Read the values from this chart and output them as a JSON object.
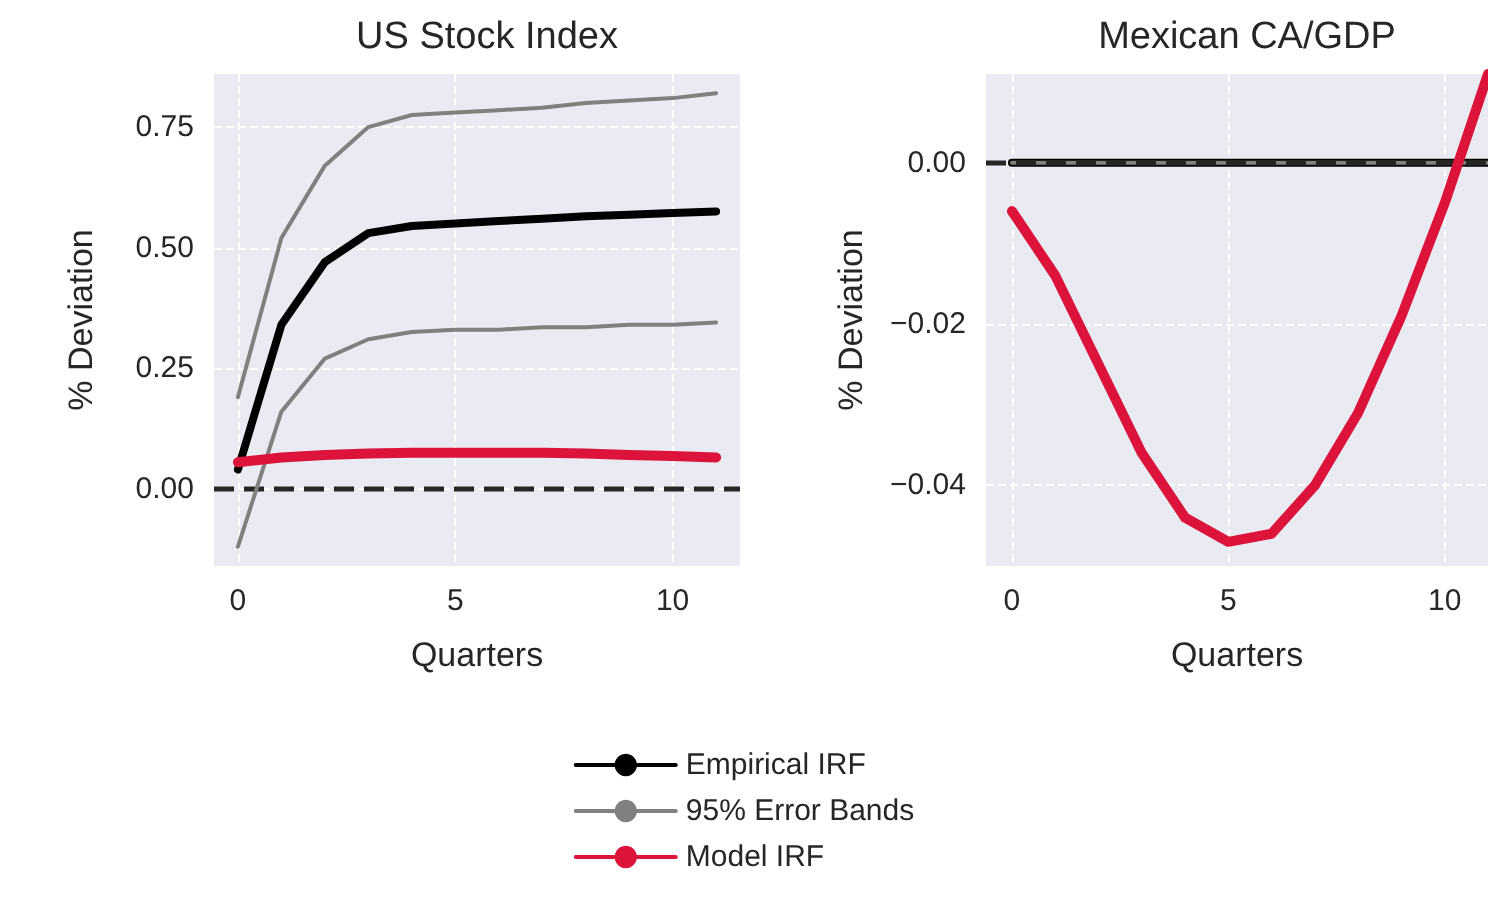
{
  "chart_data": [
    {
      "type": "line",
      "title": "US Stock Index",
      "xlabel": "Quarters",
      "ylabel": "% Deviation",
      "x": [
        0,
        1,
        2,
        3,
        4,
        5,
        6,
        7,
        8,
        9,
        10,
        11
      ],
      "xlim": [
        -0.55,
        11.55
      ],
      "xticks": [
        0,
        5,
        10
      ],
      "ylim": [
        -0.16,
        0.86
      ],
      "yticks": [
        {
          "value": 0,
          "label": "0.00"
        },
        {
          "value": 0.25,
          "label": "0.25"
        },
        {
          "value": 0.5,
          "label": "0.50"
        },
        {
          "value": 0.75,
          "label": "0.75"
        }
      ],
      "grid": true,
      "legend": "bottom",
      "marker": "none",
      "ref_lines": [
        {
          "axis": "y",
          "value": 0,
          "color": "#262626",
          "line_style": "dashed"
        }
      ],
      "series": [
        {
          "name": "Empirical IRF",
          "color": "#000000",
          "values": [
            0.04,
            0.34,
            0.47,
            0.53,
            0.545,
            0.55,
            0.555,
            0.56,
            0.565,
            0.568,
            0.572,
            0.575
          ]
        },
        {
          "name": "95% Error Bands",
          "color": "#808080",
          "values": [
            0.19,
            0.52,
            0.67,
            0.75,
            0.775,
            0.78,
            0.785,
            0.79,
            0.8,
            0.805,
            0.81,
            0.82
          ]
        },
        {
          "color": "#808080",
          "values": [
            -0.12,
            0.16,
            0.27,
            0.31,
            0.325,
            0.33,
            0.33,
            0.335,
            0.335,
            0.34,
            0.34,
            0.345
          ]
        },
        {
          "name": "Model IRF",
          "color": "#dc143c",
          "values": [
            0.055,
            0.065,
            0.07,
            0.073,
            0.075,
            0.075,
            0.075,
            0.075,
            0.073,
            0.07,
            0.068,
            0.065
          ]
        }
      ]
    },
    {
      "type": "line",
      "title": "Mexican CA/GDP",
      "xlabel": "Quarters",
      "ylabel": "% Deviation",
      "x": [
        0,
        1,
        2,
        3,
        4,
        5,
        6,
        7,
        8,
        9,
        10,
        11
      ],
      "xlim": [
        -0.6,
        11
      ],
      "xticks": [
        0,
        5,
        10
      ],
      "ylim": [
        -0.05,
        0.011
      ],
      "yticks": [
        {
          "value": 0,
          "label": "0.00"
        },
        {
          "value": -0.02,
          "label": "−0.02"
        },
        {
          "value": -0.04,
          "label": "−0.04"
        }
      ],
      "grid": true,
      "marker": "none",
      "ref_lines": [
        {
          "axis": "y",
          "value": 0,
          "color": "#262626",
          "line_style": "dashed"
        }
      ],
      "series": [
        {
          "color": "#000000",
          "values": [
            0,
            0,
            0,
            0,
            0,
            0,
            0,
            0,
            0,
            0,
            0,
            0
          ]
        },
        {
          "color": "#808080",
          "values": [
            0,
            0,
            0,
            0,
            0,
            0,
            0,
            0,
            0,
            0,
            0,
            0
          ]
        },
        {
          "color": "#dc143c",
          "values": [
            -0.006,
            -0.014,
            -0.025,
            -0.036,
            -0.044,
            -0.047,
            -0.046,
            -0.04,
            -0.031,
            -0.019,
            -0.005,
            0.011
          ]
        }
      ]
    }
  ]
}
